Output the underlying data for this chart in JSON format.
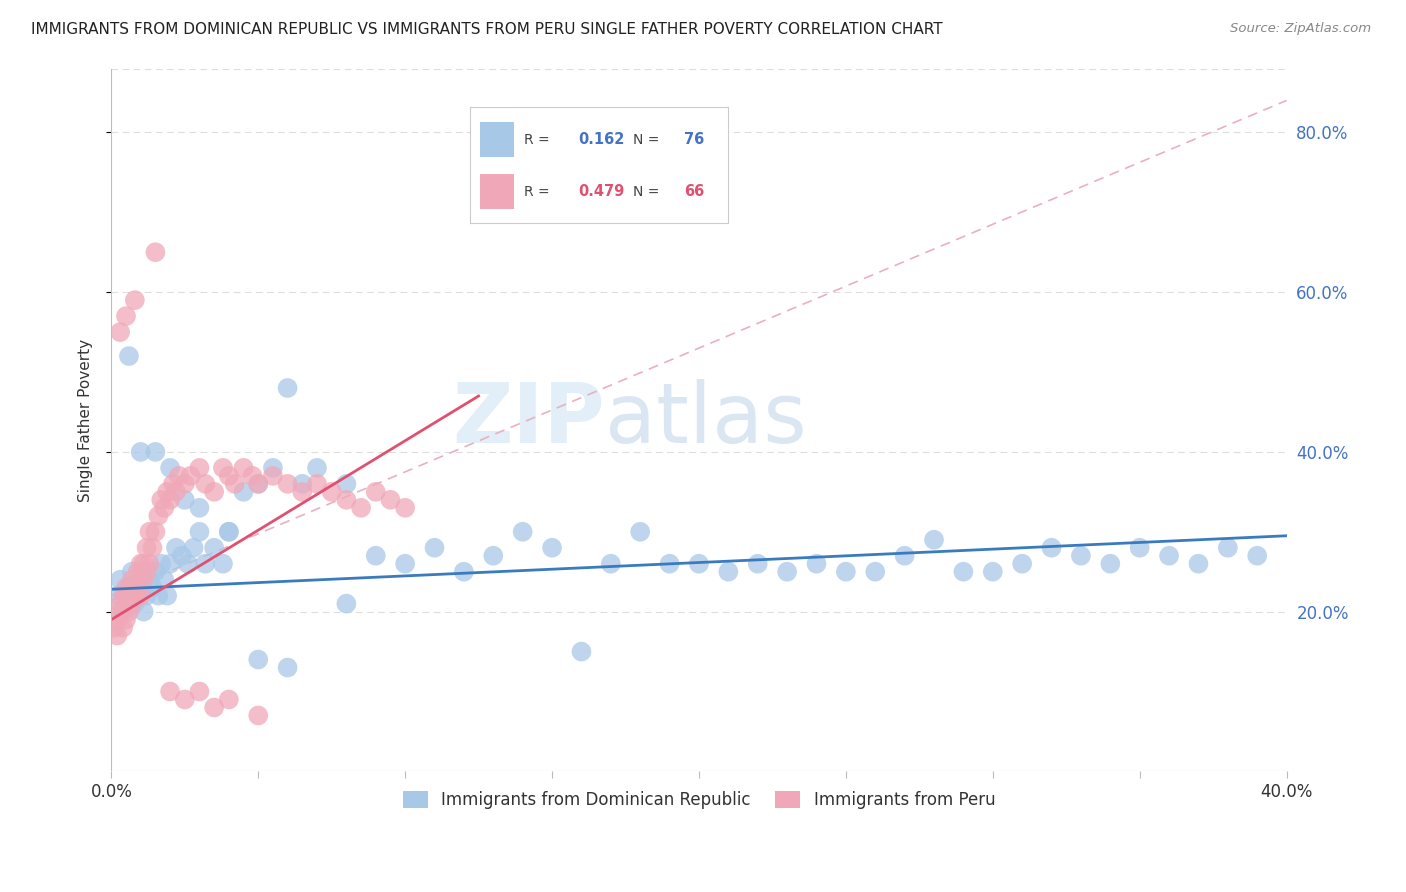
{
  "title": "IMMIGRANTS FROM DOMINICAN REPUBLIC VS IMMIGRANTS FROM PERU SINGLE FATHER POVERTY CORRELATION CHART",
  "source": "Source: ZipAtlas.com",
  "ylabel": "Single Father Poverty",
  "y_ticks": [
    0.2,
    0.4,
    0.6,
    0.8
  ],
  "y_tick_labels": [
    "20.0%",
    "40.0%",
    "60.0%",
    "80.0%"
  ],
  "xlim": [
    0.0,
    0.4
  ],
  "ylim": [
    0.0,
    0.88
  ],
  "legend_label1": "Immigrants from Dominican Republic",
  "legend_label2": "Immigrants from Peru",
  "color_blue": "#a8c8e8",
  "color_pink": "#f0a8b8",
  "color_blue_line": "#3a7bbf",
  "color_pink_line": "#e05070",
  "watermark_zip": "ZIP",
  "watermark_atlas": "atlas",
  "blue_scatter_x": [
    0.002,
    0.003,
    0.004,
    0.005,
    0.006,
    0.007,
    0.008,
    0.009,
    0.01,
    0.011,
    0.012,
    0.013,
    0.014,
    0.015,
    0.016,
    0.017,
    0.018,
    0.019,
    0.02,
    0.022,
    0.024,
    0.026,
    0.028,
    0.03,
    0.032,
    0.035,
    0.038,
    0.04,
    0.045,
    0.05,
    0.055,
    0.06,
    0.065,
    0.07,
    0.08,
    0.09,
    0.1,
    0.11,
    0.12,
    0.13,
    0.14,
    0.15,
    0.16,
    0.17,
    0.18,
    0.19,
    0.2,
    0.21,
    0.22,
    0.23,
    0.24,
    0.25,
    0.26,
    0.27,
    0.28,
    0.29,
    0.3,
    0.31,
    0.32,
    0.33,
    0.34,
    0.35,
    0.36,
    0.37,
    0.38,
    0.39,
    0.006,
    0.01,
    0.015,
    0.02,
    0.025,
    0.03,
    0.04,
    0.05,
    0.06,
    0.08
  ],
  "blue_scatter_y": [
    0.22,
    0.24,
    0.2,
    0.22,
    0.23,
    0.25,
    0.21,
    0.22,
    0.23,
    0.2,
    0.22,
    0.24,
    0.23,
    0.25,
    0.22,
    0.26,
    0.24,
    0.22,
    0.26,
    0.28,
    0.27,
    0.26,
    0.28,
    0.3,
    0.26,
    0.28,
    0.26,
    0.3,
    0.35,
    0.36,
    0.38,
    0.48,
    0.36,
    0.38,
    0.36,
    0.27,
    0.26,
    0.28,
    0.25,
    0.27,
    0.3,
    0.28,
    0.15,
    0.26,
    0.3,
    0.26,
    0.26,
    0.25,
    0.26,
    0.25,
    0.26,
    0.25,
    0.25,
    0.27,
    0.29,
    0.25,
    0.25,
    0.26,
    0.28,
    0.27,
    0.26,
    0.28,
    0.27,
    0.26,
    0.28,
    0.27,
    0.52,
    0.4,
    0.4,
    0.38,
    0.34,
    0.33,
    0.3,
    0.14,
    0.13,
    0.21
  ],
  "pink_scatter_x": [
    0.001,
    0.002,
    0.002,
    0.003,
    0.003,
    0.004,
    0.004,
    0.005,
    0.005,
    0.006,
    0.006,
    0.007,
    0.007,
    0.008,
    0.008,
    0.009,
    0.009,
    0.01,
    0.01,
    0.011,
    0.011,
    0.012,
    0.012,
    0.013,
    0.013,
    0.014,
    0.015,
    0.016,
    0.017,
    0.018,
    0.019,
    0.02,
    0.021,
    0.022,
    0.023,
    0.025,
    0.027,
    0.03,
    0.032,
    0.035,
    0.038,
    0.04,
    0.042,
    0.045,
    0.048,
    0.05,
    0.055,
    0.06,
    0.065,
    0.07,
    0.075,
    0.08,
    0.085,
    0.09,
    0.095,
    0.1,
    0.003,
    0.005,
    0.008,
    0.015,
    0.02,
    0.025,
    0.03,
    0.035,
    0.04,
    0.05
  ],
  "pink_scatter_y": [
    0.18,
    0.17,
    0.19,
    0.2,
    0.21,
    0.18,
    0.22,
    0.19,
    0.23,
    0.2,
    0.22,
    0.24,
    0.21,
    0.23,
    0.22,
    0.25,
    0.23,
    0.22,
    0.26,
    0.24,
    0.26,
    0.25,
    0.28,
    0.26,
    0.3,
    0.28,
    0.3,
    0.32,
    0.34,
    0.33,
    0.35,
    0.34,
    0.36,
    0.35,
    0.37,
    0.36,
    0.37,
    0.38,
    0.36,
    0.35,
    0.38,
    0.37,
    0.36,
    0.38,
    0.37,
    0.36,
    0.37,
    0.36,
    0.35,
    0.36,
    0.35,
    0.34,
    0.33,
    0.35,
    0.34,
    0.33,
    0.55,
    0.57,
    0.59,
    0.65,
    0.1,
    0.09,
    0.1,
    0.08,
    0.09,
    0.07
  ]
}
